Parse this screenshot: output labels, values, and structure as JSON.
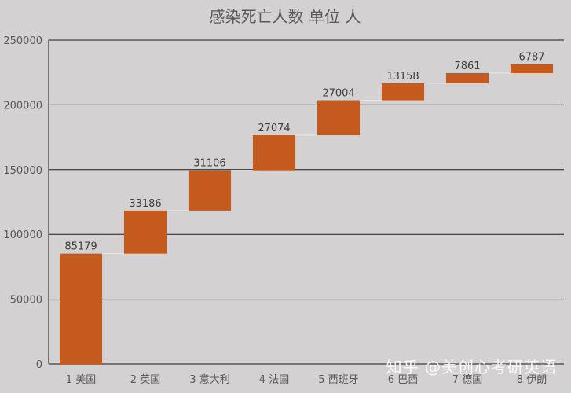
{
  "chart_data": {
    "type": "bar",
    "subtype": "waterfall",
    "title": "感染死亡人数 单位 人",
    "categories": [
      "1 美国",
      "2 英国",
      "3 意大利",
      "4 法国",
      "5 西班牙",
      "6 巴西",
      "7 德国",
      "8 伊朗"
    ],
    "values": [
      85179,
      33186,
      31106,
      27074,
      27004,
      13158,
      7861,
      6787
    ],
    "ylim": [
      0,
      250000
    ],
    "yticks": [
      0,
      50000,
      100000,
      150000,
      200000,
      250000
    ],
    "grid": true,
    "xlabel": "",
    "ylabel": "",
    "bar_color": "#c55a1f"
  },
  "watermark": "知乎 @美创心考研英语"
}
